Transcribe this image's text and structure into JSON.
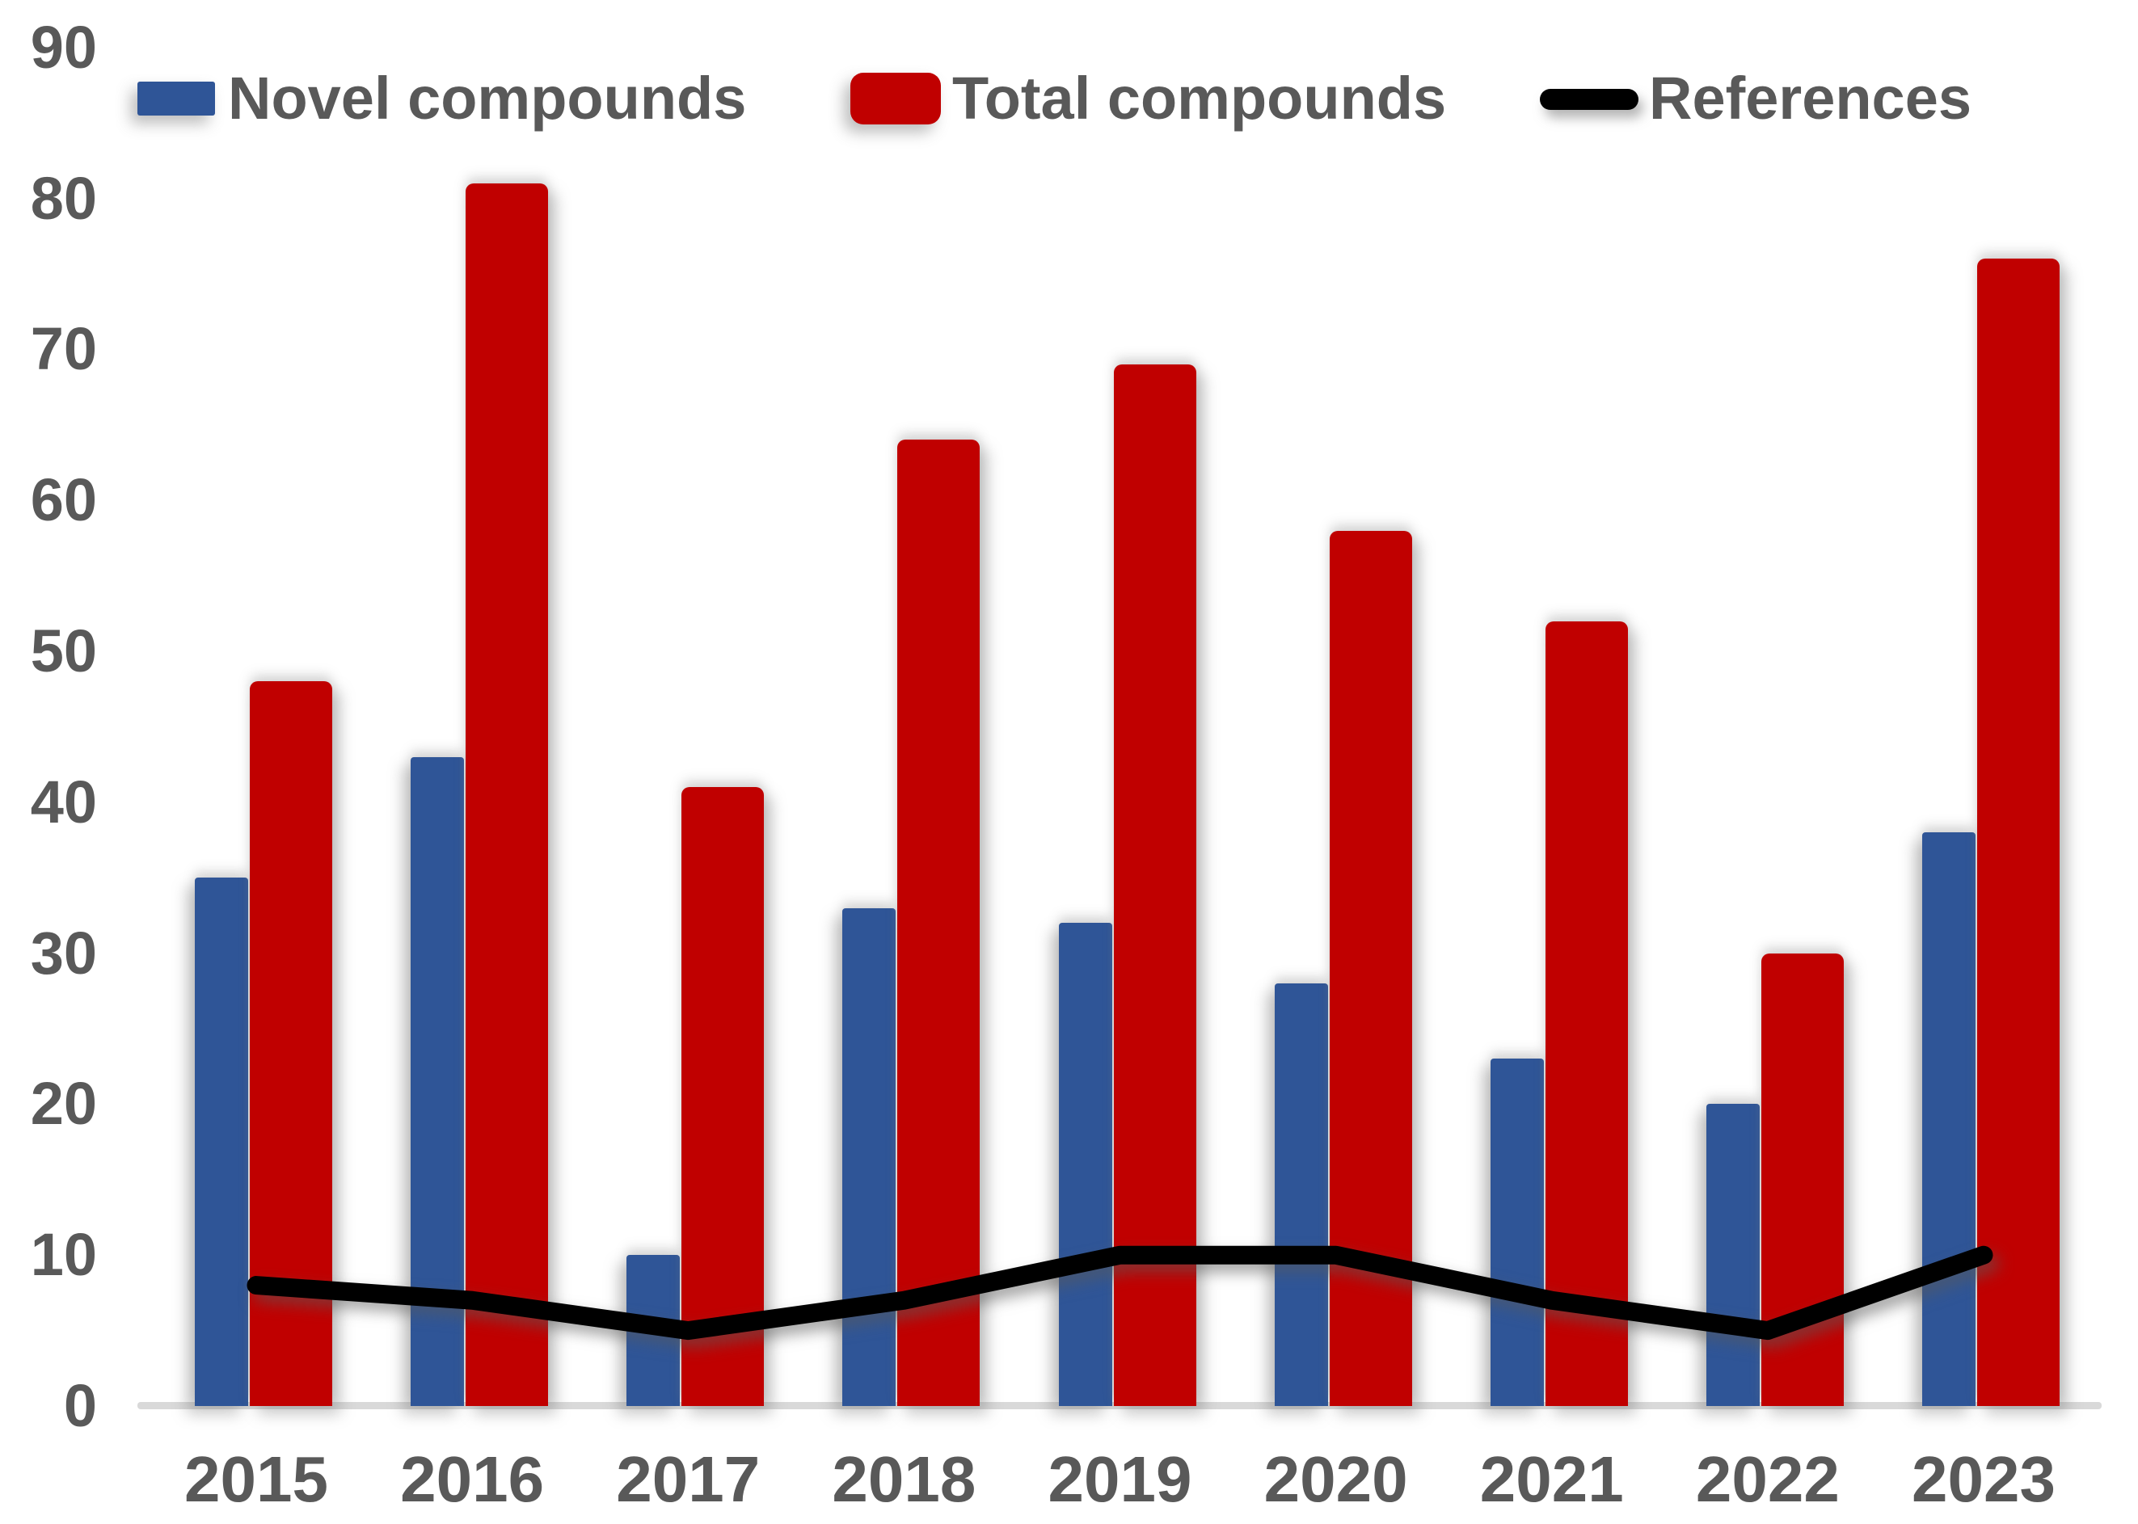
{
  "chart": {
    "background": "#FFFFFF",
    "text_color": "#595959",
    "baseline_color": "#D9D9D9"
  },
  "chart_data": {
    "type": "combo-bar-line",
    "title": "",
    "xlabel": "",
    "ylabel": "",
    "categories": [
      "2015",
      "2016",
      "2017",
      "2018",
      "2019",
      "2020",
      "2021",
      "2022",
      "2023"
    ],
    "series": [
      {
        "name": "Novel compounds",
        "type": "bar",
        "color": "#2F5597",
        "values": [
          35,
          43,
          10,
          33,
          32,
          28,
          23,
          20,
          38
        ]
      },
      {
        "name": "Total compounds",
        "type": "bar",
        "color": "#C00000",
        "values": [
          48,
          81,
          41,
          64,
          69,
          58,
          52,
          30,
          76
        ]
      },
      {
        "name": "References",
        "type": "line",
        "color": "#000000",
        "values": [
          8,
          7,
          5,
          7,
          10,
          10,
          7,
          5,
          10
        ]
      }
    ],
    "ylim": [
      0,
      90
    ],
    "yticks": [
      0,
      10,
      20,
      30,
      40,
      50,
      60,
      70,
      80,
      90
    ],
    "gridlines": false,
    "legend_position": "top"
  }
}
